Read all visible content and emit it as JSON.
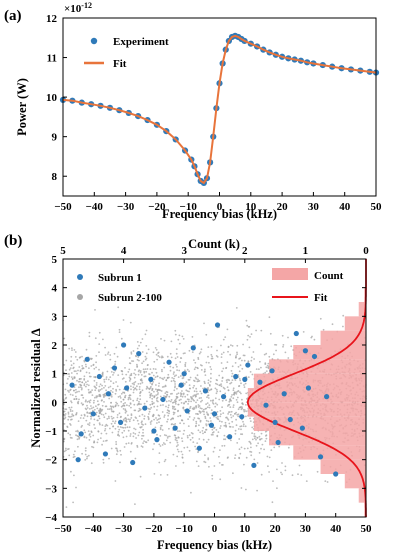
{
  "panel_labels": [
    "(a)",
    "(b)"
  ],
  "chart_data": [
    {
      "type": "line",
      "panel": "(a)",
      "xlabel": "Frequency bias (kHz)",
      "ylabel": "Power (W)",
      "y_multiplier": "×10",
      "y_multiplier_exp": "-12",
      "xlim": [
        -50,
        50
      ],
      "ylim": [
        7.5,
        12
      ],
      "xticks": [
        -50,
        -40,
        -30,
        -20,
        -10,
        0,
        10,
        20,
        30,
        40,
        50
      ],
      "yticks": [
        8,
        9,
        10,
        11,
        12
      ],
      "grid": false,
      "legend_position": "top-left",
      "colors": {
        "experiment": "#2f7ab9",
        "fit": "#e8743b"
      },
      "series": [
        {
          "name": "Experiment",
          "style": "markers",
          "x": [
            -50,
            -47,
            -44,
            -41,
            -38,
            -35,
            -32,
            -29,
            -26,
            -23,
            -20,
            -17,
            -14,
            -11,
            -9,
            -8,
            -7,
            -6,
            -5,
            -4,
            -3,
            -2,
            -1,
            0,
            1,
            2,
            3,
            4,
            5,
            6,
            7,
            8,
            10,
            12,
            14,
            16,
            18,
            20,
            22,
            24,
            26,
            28,
            30,
            33,
            36,
            39,
            42,
            45,
            48,
            50
          ],
          "y": [
            9.93,
            9.91,
            9.86,
            9.82,
            9.78,
            9.73,
            9.67,
            9.6,
            9.52,
            9.42,
            9.3,
            9.14,
            8.93,
            8.65,
            8.42,
            8.25,
            8.05,
            7.88,
            7.83,
            7.95,
            8.35,
            9.0,
            9.72,
            10.35,
            10.85,
            11.2,
            11.42,
            11.52,
            11.55,
            11.52,
            11.47,
            11.42,
            11.35,
            11.28,
            11.2,
            11.13,
            11.07,
            11.02,
            10.98,
            10.95,
            10.92,
            10.88,
            10.85,
            10.81,
            10.77,
            10.73,
            10.7,
            10.67,
            10.64,
            10.62
          ]
        },
        {
          "name": "Fit",
          "style": "line",
          "x": [
            -50,
            -47,
            -44,
            -41,
            -38,
            -35,
            -32,
            -29,
            -26,
            -23,
            -20,
            -17,
            -14,
            -11,
            -9,
            -8,
            -7,
            -6,
            -5,
            -4,
            -3,
            -2,
            -1,
            0,
            1,
            2,
            3,
            4,
            5,
            6,
            7,
            8,
            10,
            12,
            14,
            16,
            18,
            20,
            22,
            24,
            26,
            28,
            30,
            33,
            36,
            39,
            42,
            45,
            48,
            50
          ],
          "y": [
            9.93,
            9.91,
            9.86,
            9.82,
            9.78,
            9.73,
            9.67,
            9.6,
            9.52,
            9.42,
            9.3,
            9.14,
            8.93,
            8.65,
            8.42,
            8.25,
            8.05,
            7.88,
            7.83,
            7.95,
            8.35,
            9.0,
            9.72,
            10.35,
            10.85,
            11.2,
            11.42,
            11.52,
            11.55,
            11.52,
            11.47,
            11.42,
            11.35,
            11.28,
            11.2,
            11.13,
            11.07,
            11.02,
            10.98,
            10.95,
            10.92,
            10.88,
            10.85,
            10.81,
            10.77,
            10.73,
            10.7,
            10.67,
            10.64,
            10.62
          ]
        }
      ]
    },
    {
      "type": "scatter",
      "panel": "(b)",
      "xlabel": "Frequency bias (kHz)",
      "ylabel": "Normalized residual Δ",
      "top_xlabel": "Count (k)",
      "xlim": [
        -50,
        50
      ],
      "ylim": [
        -4,
        5
      ],
      "xticks": [
        -50,
        -40,
        -30,
        -20,
        -10,
        0,
        10,
        20,
        30,
        40,
        50
      ],
      "yticks": [
        -4,
        -3,
        -2,
        -1,
        0,
        1,
        2,
        3,
        4,
        5
      ],
      "top_xlim": [
        5,
        0
      ],
      "top_xticks": [
        5,
        4,
        3,
        2,
        1,
        0
      ],
      "grid": false,
      "colors": {
        "subrun1": "#2f7ab9",
        "subrun_rest": "#a6a6a6",
        "count": "#f4a6a6",
        "fit": "#e8141b"
      },
      "legend_left": [
        {
          "name": "Subrun 1",
          "style": "dot"
        },
        {
          "name": "Subrun 2-100",
          "style": "dot-gray"
        }
      ],
      "legend_right": [
        {
          "name": "Count",
          "style": "patch"
        },
        {
          "name": "Fit",
          "style": "line"
        }
      ],
      "subrun_1_points": {
        "x": [
          -47,
          -44,
          -42,
          -40,
          -38,
          -36,
          -35,
          -33,
          -31,
          -29,
          -27,
          -25,
          -23,
          -21,
          -19,
          -17,
          -15,
          -13,
          -11,
          -9,
          -7,
          -5,
          -3,
          -1,
          1,
          3,
          5,
          7,
          9,
          11,
          13,
          15,
          17,
          19,
          21,
          23,
          25,
          27,
          29,
          31,
          33,
          35,
          37,
          -45,
          -30,
          -20,
          -10,
          0,
          10,
          20,
          30,
          40
        ],
        "y": [
          0.6,
          -1.1,
          1.5,
          -0.4,
          0.9,
          -1.8,
          0.3,
          1.2,
          -0.7,
          0.5,
          -2.1,
          1.7,
          -0.2,
          0.8,
          -1.3,
          0.1,
          1.4,
          -0.9,
          0.6,
          -0.3,
          1.9,
          -1.6,
          0.4,
          -0.8,
          2.7,
          0.2,
          -1.2,
          0.9,
          -0.5,
          1.3,
          -2.2,
          0.7,
          -0.1,
          1.1,
          -1.4,
          0.3,
          -0.6,
          2.4,
          -0.9,
          0.5,
          1.6,
          -1.9,
          0.2,
          -2.0,
          2.0,
          -1.0,
          1.0,
          -0.4,
          0.8,
          -0.7,
          1.8,
          -2.5
        ]
      },
      "histogram_counts_k": {
        "y": [
          -3.75,
          -3.25,
          -2.75,
          -2.25,
          -1.75,
          -1.25,
          -0.75,
          -0.25,
          0.25,
          0.75,
          1.25,
          1.75,
          2.25,
          2.75,
          3.25,
          3.75
        ],
        "count": [
          0.03,
          0.12,
          0.35,
          0.75,
          1.2,
          1.6,
          1.85,
          1.95,
          1.95,
          1.85,
          1.6,
          1.2,
          0.75,
          0.35,
          0.12,
          0.03
        ]
      },
      "gaussian_fit": {
        "peak_k": 1.95,
        "mean": 0.0,
        "sigma": 1.0
      }
    }
  ]
}
